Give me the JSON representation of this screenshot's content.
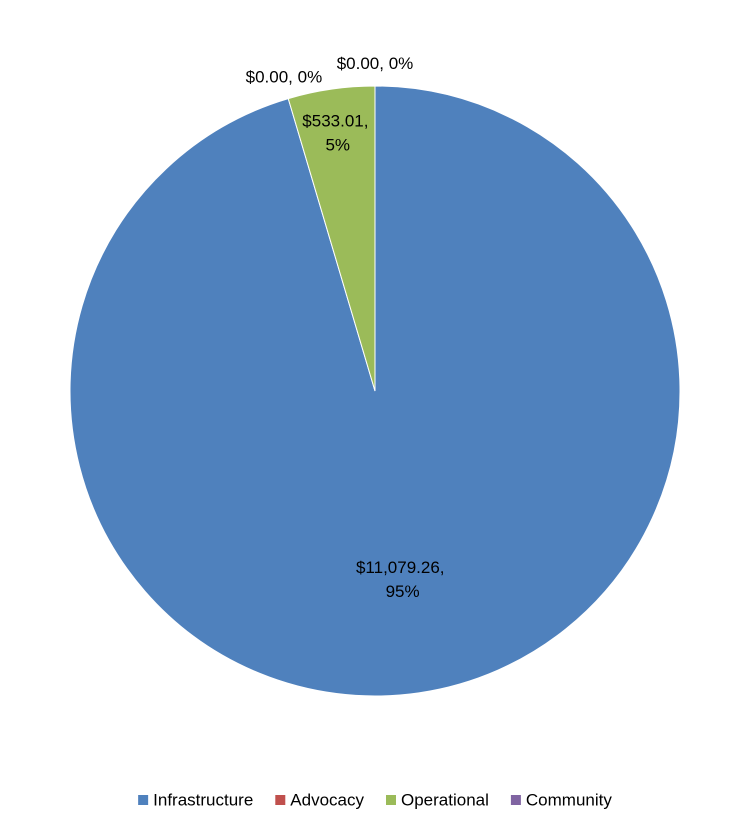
{
  "chart_data": {
    "type": "pie",
    "categories": [
      "Infrastructure",
      "Advocacy",
      "Operational",
      "Community"
    ],
    "values": [
      11079.26,
      0,
      533.01,
      0
    ],
    "value_labels": [
      "$11,079.26, 95%",
      "$0.00, 0%",
      "$533.01, 5%",
      "$0.00, 0%"
    ],
    "colors": [
      "#4f81bd",
      "#c0504d",
      "#9bbb59",
      "#8064a2"
    ],
    "legend": "bottom"
  }
}
